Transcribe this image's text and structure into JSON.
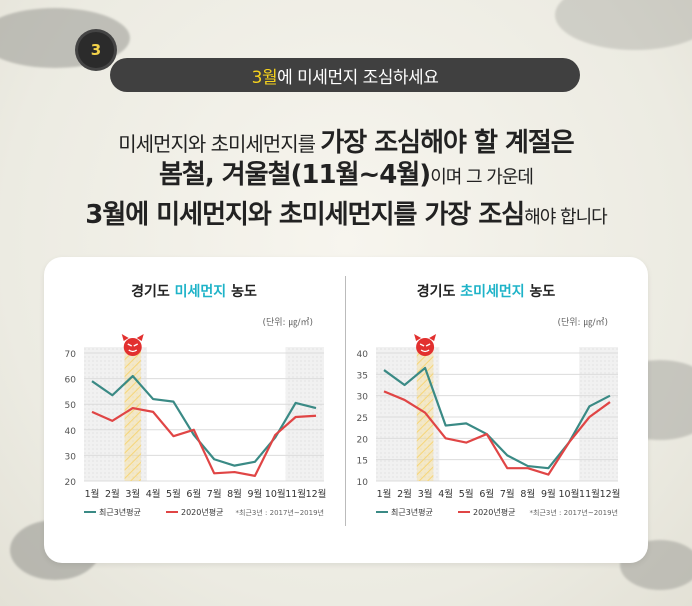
{
  "banner": {
    "highlight": "3월",
    "rest": "에 미세먼지 조심하세요"
  },
  "virus_label": "3",
  "headline": {
    "line1_a": "미세먼지와 초미세먼지를 ",
    "line1_b": "가장 조심해야 할 계절은",
    "line2_a": "봄철, 겨울철(11월~4월)",
    "line2_b": "이며 그 가운데",
    "line3_a": "3월에 미세먼지와 초미세먼지를 가장 조심",
    "line3_b": "해야 합니다"
  },
  "colors": {
    "recent": "#3a8a85",
    "y2020": "#e04545",
    "highlight_title": "#1eb3c8",
    "march_band": "#f6d67a"
  },
  "chart_data": [
    {
      "type": "line",
      "title_prefix": "경기도 ",
      "title_highlight": "미세먼지",
      "title_suffix": " 농도",
      "unit": "(단위: ㎍/㎥)",
      "categories": [
        "1월",
        "2월",
        "3월",
        "4월",
        "5월",
        "6월",
        "7월",
        "8월",
        "9월",
        "10월",
        "11월",
        "12월"
      ],
      "ylim": [
        20,
        70
      ],
      "yticks": [
        20,
        30,
        40,
        50,
        60,
        70
      ],
      "series": [
        {
          "name": "최근3년평균",
          "values": [
            59,
            53.5,
            61,
            52,
            51,
            38,
            28.5,
            26,
            27.5,
            37,
            50.5,
            48.5
          ]
        },
        {
          "name": "2020년평균",
          "values": [
            47,
            43.5,
            48.5,
            47,
            37.5,
            40,
            23,
            23.5,
            22,
            38,
            45,
            45.5
          ]
        }
      ],
      "note": "*최근3년 : 2017년~2019년"
    },
    {
      "type": "line",
      "title_prefix": "경기도 ",
      "title_highlight": "초미세먼지",
      "title_suffix": " 농도",
      "unit": "(단위: ㎍/㎥)",
      "categories": [
        "1월",
        "2월",
        "3월",
        "4월",
        "5월",
        "6월",
        "7월",
        "8월",
        "9월",
        "10월",
        "11월",
        "12월"
      ],
      "ylim": [
        10,
        40
      ],
      "yticks": [
        10,
        15,
        20,
        25,
        30,
        35,
        40
      ],
      "series": [
        {
          "name": "최근3년평균",
          "values": [
            36,
            32.5,
            36.5,
            23,
            23.5,
            21,
            16,
            13.5,
            13,
            19,
            27.5,
            30
          ]
        },
        {
          "name": "2020년평균",
          "values": [
            31,
            29,
            26,
            20,
            19,
            21,
            13,
            13,
            11.5,
            19,
            25,
            28.5
          ]
        }
      ],
      "note": "*최근3년 : 2017년~2019년"
    }
  ]
}
